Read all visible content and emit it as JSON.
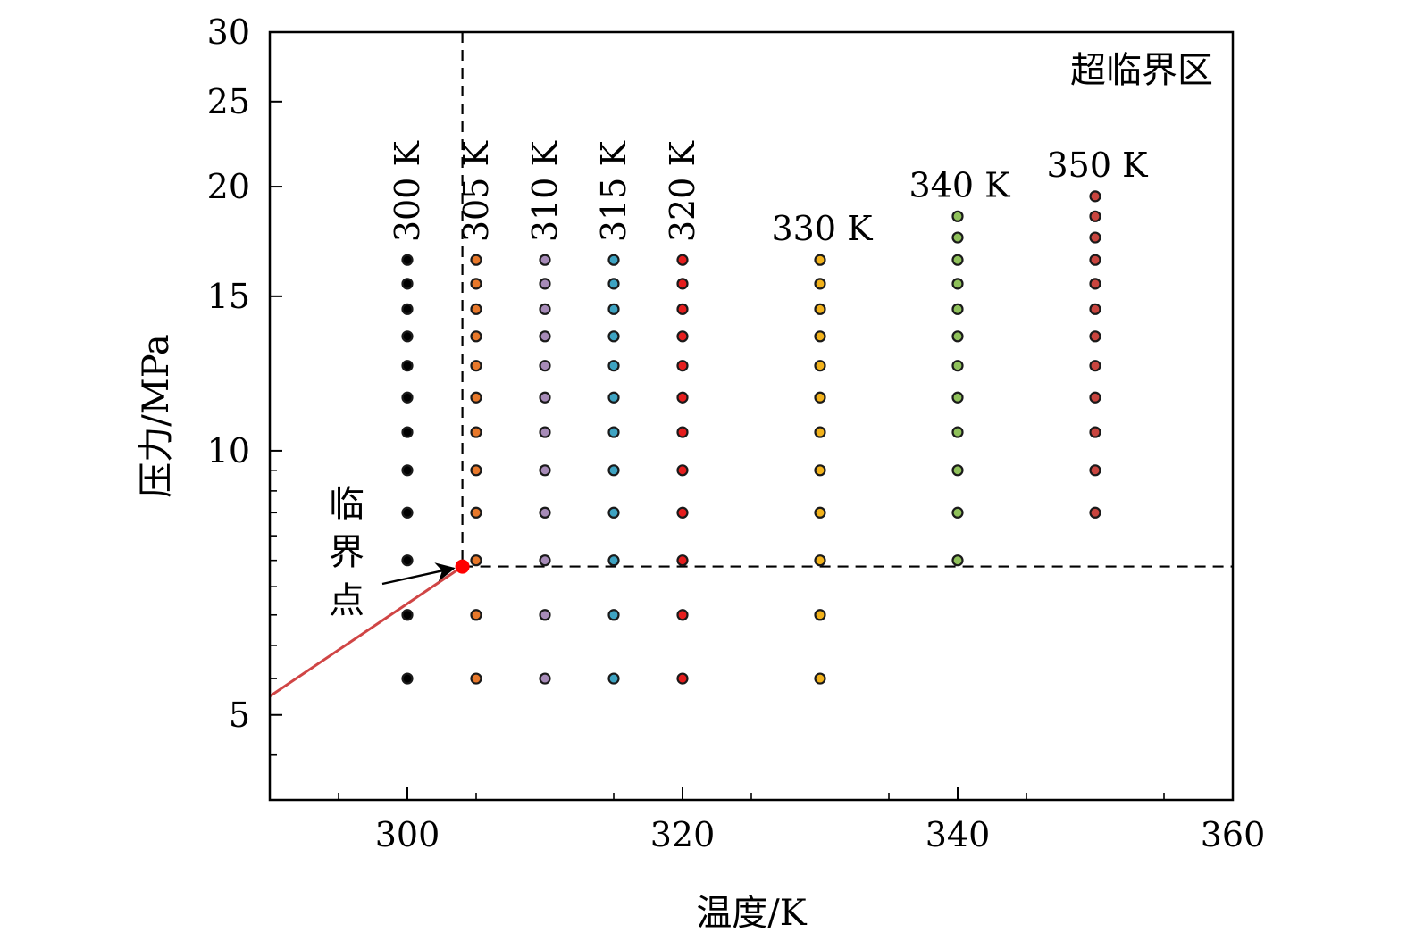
{
  "chart_data": {
    "type": "scatter",
    "xlabel": "温度/K",
    "ylabel": "压力/MPa",
    "xlim": [
      290,
      360
    ],
    "ylim": [
      4,
      30
    ],
    "yscale": "log",
    "x_ticks": [
      300,
      320,
      340,
      360
    ],
    "x_tick_labels": [
      "300",
      "320",
      "340",
      "360"
    ],
    "y_ticks": [
      5,
      10,
      15,
      20,
      25,
      30
    ],
    "y_tick_labels": [
      "5",
      "10",
      "15",
      "20",
      "25",
      "30"
    ],
    "y_minor_ticks": [
      4.5,
      5.5,
      6,
      6.5,
      7,
      7.5,
      8,
      8.5,
      9,
      9.5
    ],
    "grid": false,
    "series": [
      {
        "name": "300 K",
        "color": "#000000",
        "x": 300,
        "y": [
          5.5,
          6.5,
          7.5,
          8.5,
          9.5,
          10.5,
          11.5,
          12.5,
          13.5,
          14.5,
          15.5,
          16.5
        ]
      },
      {
        "name": "305 K",
        "color": "#e8782a",
        "x": 305,
        "y": [
          5.5,
          6.5,
          7.5,
          8.5,
          9.5,
          10.5,
          11.5,
          12.5,
          13.5,
          14.5,
          15.5,
          16.5
        ]
      },
      {
        "name": "310 K",
        "color": "#a78bb8",
        "x": 310,
        "y": [
          5.5,
          6.5,
          7.5,
          8.5,
          9.5,
          10.5,
          11.5,
          12.5,
          13.5,
          14.5,
          15.5,
          16.5
        ]
      },
      {
        "name": "315 K",
        "color": "#3ea3c2",
        "x": 315,
        "y": [
          5.5,
          6.5,
          7.5,
          8.5,
          9.5,
          10.5,
          11.5,
          12.5,
          13.5,
          14.5,
          15.5,
          16.5
        ]
      },
      {
        "name": "320 K",
        "color": "#e61e1e",
        "x": 320,
        "y": [
          5.5,
          6.5,
          7.5,
          8.5,
          9.5,
          10.5,
          11.5,
          12.5,
          13.5,
          14.5,
          15.5,
          16.5
        ]
      },
      {
        "name": "330 K",
        "color": "#f2b21b",
        "x": 330,
        "y": [
          5.5,
          6.5,
          7.5,
          8.5,
          9.5,
          10.5,
          11.5,
          12.5,
          13.5,
          14.5,
          15.5,
          16.5
        ]
      },
      {
        "name": "340 K",
        "color": "#8fc15a",
        "x": 340,
        "y": [
          7.5,
          8.5,
          9.5,
          10.5,
          11.5,
          12.5,
          13.5,
          14.5,
          15.5,
          16.5,
          17.5,
          18.5
        ]
      },
      {
        "name": "350 K",
        "color": "#c9453f",
        "x": 350,
        "y": [
          8.5,
          9.5,
          10.5,
          11.5,
          12.5,
          13.5,
          14.5,
          15.5,
          16.5,
          17.5,
          18.5,
          19.5
        ]
      }
    ],
    "critical_point": {
      "x": 304,
      "y": 7.38,
      "color": "#ff0000"
    },
    "critical_vertical_line_x": 304,
    "critical_horizontal_line_y": 7.38,
    "boundary_line": {
      "color": "#d04545",
      "x": [
        290,
        304
      ],
      "y": [
        5.25,
        7.38
      ]
    },
    "annotations": {
      "supercritical_region": "超临界区",
      "critical_point_label": [
        "临",
        "界",
        "点"
      ]
    }
  }
}
